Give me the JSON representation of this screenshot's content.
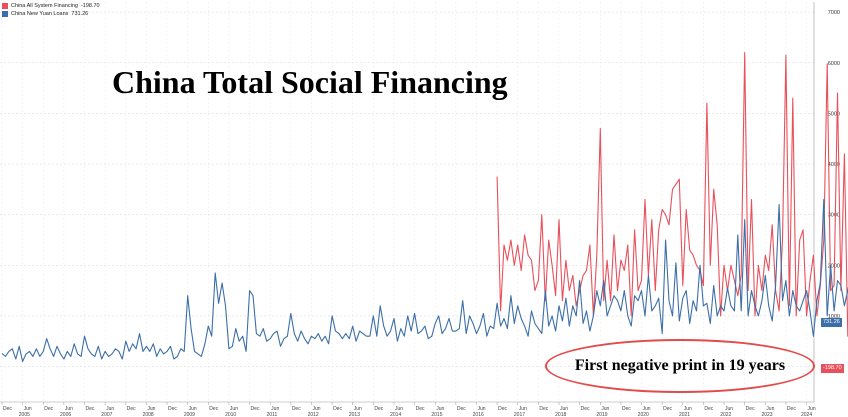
{
  "title": "China Total Social Financing",
  "annotation": "First negative print in 19 years",
  "legend": [
    {
      "name": "China All System Financing",
      "value": "-198.70",
      "color": "#e8505b"
    },
    {
      "name": "China New Yuan Loans",
      "value": "731.26",
      "color": "#3c6fa8"
    }
  ],
  "last_value_tags": {
    "series_a": "-198.70",
    "series_b": "731.26"
  },
  "chart_data": {
    "type": "line",
    "title": "China Total Social Financing",
    "ylim": [
      -700,
      7200
    ],
    "y_ticks": [
      0,
      1000,
      2000,
      3000,
      4000,
      5000,
      6000,
      7000
    ],
    "x_month_labels": [
      "Dec",
      "Jun"
    ],
    "x_year_labels": [
      "2005",
      "2006",
      "2007",
      "2008",
      "2009",
      "2010",
      "2011",
      "2012",
      "2013",
      "2014",
      "2015",
      "2016",
      "2017",
      "2018",
      "2019",
      "2020",
      "2021",
      "2022",
      "2023",
      "2024"
    ],
    "x_start": "2004-12",
    "x_end": "2024-07",
    "grid": true,
    "legend_position": "top-left",
    "series": [
      {
        "name": "China All System Financing",
        "color": "#e8505b",
        "start": "2016-12",
        "values": [
          3750,
          1100,
          2400,
          2100,
          2500,
          2000,
          2400,
          1900,
          2600,
          2200,
          2100,
          1500,
          1700,
          3000,
          1300,
          2500,
          2000,
          1400,
          2900,
          1300,
          2100,
          1500,
          1800,
          1200,
          1500,
          1800,
          1900,
          2400,
          1000,
          2200,
          4700,
          1300,
          2100,
          1300,
          2600,
          1500,
          2100,
          1900,
          2400,
          1000,
          2700,
          1500,
          1700,
          3300,
          1800,
          2900,
          1500,
          2700,
          3100,
          3000,
          2800,
          3500,
          3600,
          3700,
          1600,
          3100,
          2300,
          2200,
          2000,
          1900,
          1600,
          5200,
          2000,
          3500,
          2800,
          1000,
          2000,
          1500,
          2000,
          1700,
          1400,
          1800,
          6200,
          1500,
          3300,
          1000,
          2000,
          1500,
          2200,
          1900,
          2800,
          1500,
          1100,
          2500,
          6150,
          1200,
          5300,
          1000,
          2500,
          2700,
          1000,
          1700,
          2200,
          1000,
          1600,
          2500,
          5980,
          1500,
          1600,
          5400,
          1500,
          4200,
          600,
          3000,
          4100,
          1800,
          2500,
          1200,
          6500,
          1500,
          2950,
          1500,
          4000,
          2000,
          -198.7
        ]
      },
      {
        "name": "China New Yuan Loans",
        "color": "#3c6fa8",
        "start": "2004-12",
        "values": [
          260,
          200,
          300,
          350,
          150,
          400,
          100,
          250,
          300,
          200,
          350,
          200,
          300,
          550,
          350,
          200,
          400,
          250,
          150,
          300,
          200,
          450,
          250,
          200,
          600,
          350,
          250,
          200,
          400,
          150,
          300,
          200,
          250,
          350,
          300,
          150,
          500,
          300,
          450,
          350,
          650,
          300,
          400,
          300,
          450,
          200,
          350,
          250,
          300,
          400,
          150,
          200,
          350,
          300,
          1400,
          750,
          300,
          250,
          200,
          450,
          800,
          600,
          1850,
          1250,
          1650,
          1200,
          350,
          400,
          750,
          500,
          600,
          300,
          1500,
          1400,
          650,
          600,
          750,
          500,
          550,
          650,
          700,
          400,
          550,
          600,
          1050,
          650,
          500,
          700,
          550,
          450,
          600,
          550,
          650,
          500,
          600,
          450,
          1000,
          700,
          650,
          550,
          650,
          550,
          800,
          500,
          700,
          650,
          600,
          600,
          1000,
          600,
          1200,
          800,
          600,
          700,
          950,
          500,
          750,
          600,
          1000,
          700,
          1050,
          650,
          700,
          800,
          550,
          600,
          850,
          1000,
          650,
          750,
          950,
          700,
          700,
          750,
          1300,
          650,
          1000,
          850,
          650,
          800,
          1050,
          600,
          800,
          750,
          1250,
          800,
          950,
          750,
          1400,
          850,
          1200,
          950,
          800,
          600,
          1100,
          850,
          750,
          650,
          1500,
          800,
          1000,
          700,
          1200,
          900,
          1350,
          800,
          1200,
          1000,
          1700,
          850,
          1100,
          700,
          1000,
          1500,
          1200,
          1700,
          1000,
          1200,
          1400,
          1300,
          1100,
          1500,
          1000,
          800,
          1400,
          1300,
          1500,
          1000,
          1800,
          1100,
          1200,
          1350,
          650,
          2500,
          1300,
          1000,
          2050,
          900,
          1350,
          1500,
          850,
          1300,
          1100,
          2000,
          1200,
          1250,
          850,
          1600,
          1000,
          1200,
          1100,
          1550,
          1200,
          1100,
          2600,
          1100,
          2900,
          1000,
          1500,
          1200,
          1000,
          1300,
          1800,
          1200,
          900,
          1600,
          3200,
          1300,
          1700,
          1000,
          1500,
          1200,
          1100,
          1300,
          1500,
          1100,
          600,
          1300,
          1650,
          3300,
          1000,
          2000,
          1100,
          1700,
          1600,
          1200,
          1500,
          1900,
          1200,
          700,
          2000,
          3500,
          900,
          1400,
          2700,
          1500,
          1300,
          1900,
          1000,
          1600,
          1400,
          700,
          1400,
          3600,
          1300,
          2800,
          1000,
          1900,
          1100,
          1500,
          1200,
          2300,
          1000,
          700,
          1200,
          3980,
          1200,
          3100,
          900,
          1500,
          1400,
          800,
          1700,
          2100,
          1300,
          600,
          1100,
          4900,
          1400,
          3900,
          600,
          1300,
          2200,
          900,
          1500,
          1800,
          1200,
          800,
          1300,
          4800,
          1400,
          3100,
          800,
          1100,
          700,
          3050,
          1500,
          1100,
          1200,
          3000,
          731.26
        ]
      }
    ]
  }
}
